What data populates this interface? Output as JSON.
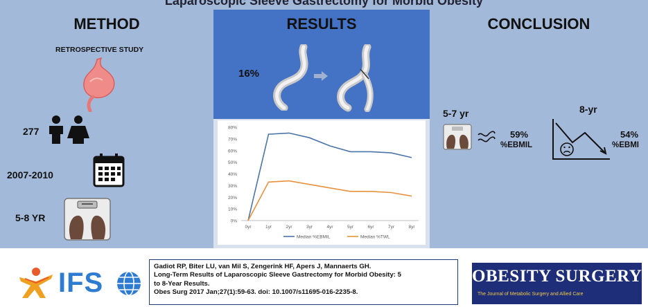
{
  "title": "Laparoscopic Sleeve Gastrectomy for Morbid Obesity",
  "method": {
    "header": "METHOD",
    "study_type": "RETROSPECTIVE STUDY",
    "patients": "277",
    "years": "2007-2010",
    "followup": "5-8 YR"
  },
  "results": {
    "header": "RESULTS",
    "conversion_pct": "16%"
  },
  "conclusion": {
    "header": "CONCLUSION",
    "period1": "5-7 yr",
    "value1": "59%",
    "metric1": "%EBMIL",
    "period2": "8-yr",
    "value2": "54%",
    "metric2": "%EBMI"
  },
  "chart_data": {
    "type": "line",
    "categories": [
      "0yr",
      "1yr",
      "2yr",
      "3yr",
      "4yr",
      "5yr",
      "6yr",
      "7yr",
      "8yr"
    ],
    "yticks": [
      "0%",
      "10%",
      "20%",
      "30%",
      "40%",
      "50%",
      "60%",
      "70%",
      "80%"
    ],
    "ylim": [
      0,
      80
    ],
    "series": [
      {
        "name": "Median %EBMIL",
        "color": "#4a74a8",
        "values": [
          0,
          74,
          75,
          71,
          64,
          59,
          59,
          58,
          54
        ]
      },
      {
        "name": "Median %TWL",
        "color": "#e8913c",
        "values": [
          0,
          33,
          34,
          31,
          28,
          25,
          25,
          24,
          21
        ]
      }
    ],
    "legend": "bottom",
    "grid": false
  },
  "footer": {
    "logo_text": "IFS",
    "citation_authors": "Gadiot RP, Biter LU, van Mil S, Zengerink HF, Apers J, Mannaerts GH.",
    "citation_title_1": "Long-Term Results of Laparoscopic Sleeve Gastrectomy for Morbid Obesity: 5",
    "citation_title_2": "to 8-Year Results.",
    "citation_ref": "Obes Surg 2017 Jan;27(1):59-63. doi: 10.1007/s11695-016-2235-8.",
    "journal_title": "OBESITY SURGERY",
    "journal_subtitle": "The Journal of Metabolic Surgery and Allied Care"
  },
  "colors": {
    "panel": "#a3b9d9",
    "results_header": "#4472c4",
    "chart_bg": "#d9e1ee",
    "journal": "#1e2e78",
    "logo": "#2e7bd2"
  }
}
